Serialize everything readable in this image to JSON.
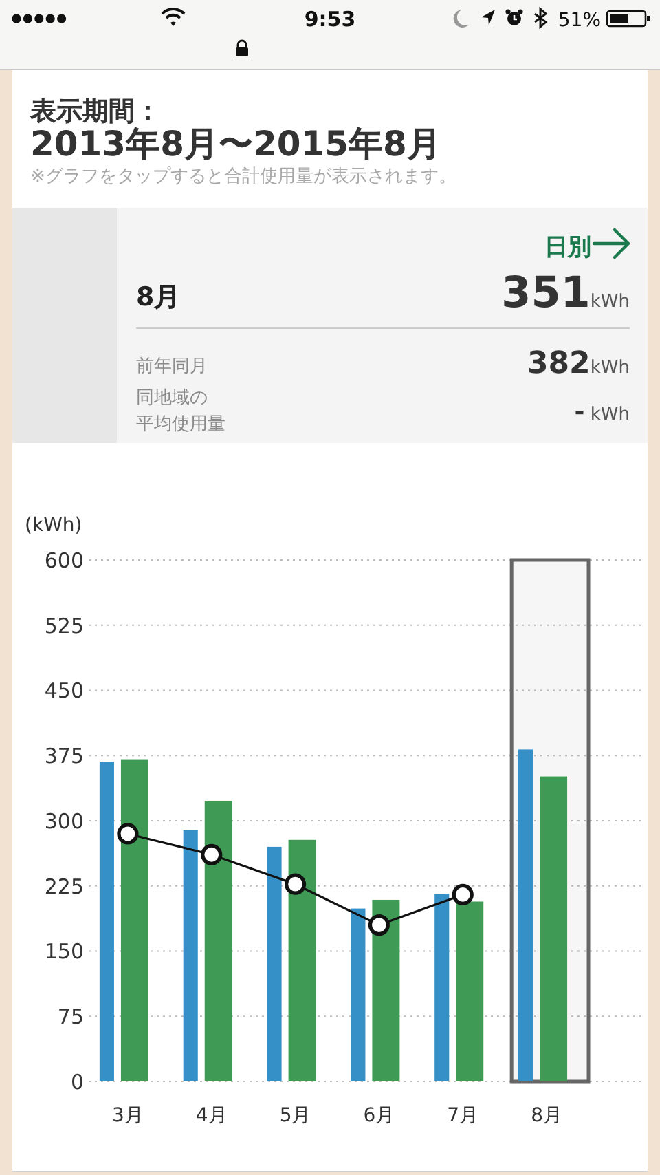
{
  "chart_data": {
    "type": "bar",
    "title": "表示期間：",
    "subtitle": "2013年8月〜2015年8月",
    "ylabel": "(kWh)",
    "categories": [
      "3月",
      "4月",
      "5月",
      "6月",
      "7月",
      "8月"
    ],
    "series": [
      {
        "color": "#3590c8",
        "values": [
          368,
          289,
          270,
          199,
          216,
          382
        ]
      },
      {
        "color": "#3e9a55",
        "values": [
          370,
          323,
          278,
          209,
          207,
          351
        ]
      },
      {
        "type": "line",
        "color": "#111111",
        "values": [
          285,
          261,
          227,
          180,
          215,
          null
        ]
      }
    ],
    "ylim": [
      0,
      600
    ],
    "yticks": [
      0,
      75,
      150,
      225,
      300,
      375,
      450,
      525,
      600
    ],
    "grid": "y",
    "marker": "circle",
    "bands": [
      {
        "axis": "x",
        "from": "8月",
        "to": "8月",
        "color": "#666666"
      }
    ],
    "annotations": [
      "9:53",
      "51%",
      "※グラフをタップすると合計使用量が表示されます。",
      "日別",
      "8月",
      "351kWh",
      "前年同月",
      "382kWh",
      "同地域の",
      "平均使用量",
      "- kWh"
    ]
  }
}
